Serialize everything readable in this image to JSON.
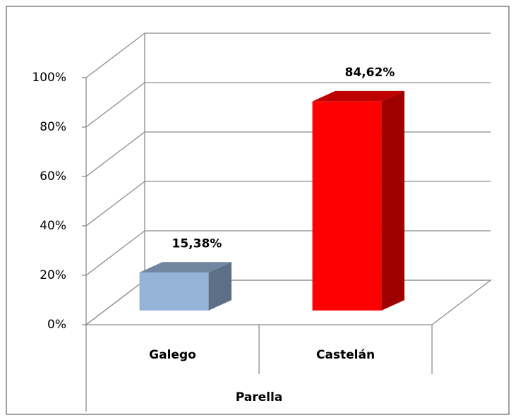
{
  "chart_data": {
    "type": "bar3d",
    "categories": [
      "Galego",
      "Castelán"
    ],
    "series": [
      {
        "values": [
          15.38,
          84.62
        ],
        "value_labels": [
          "15,38%",
          "84,62%"
        ],
        "colors": [
          "#95b3d7",
          "#ff0000"
        ]
      }
    ],
    "xlabel": "Parella",
    "ylim": [
      0,
      100
    ],
    "yticks": [
      {
        "value": 0,
        "label": "0%"
      },
      {
        "value": 20,
        "label": "20%"
      },
      {
        "value": 40,
        "label": "40%"
      },
      {
        "value": 60,
        "label": "60%"
      },
      {
        "value": 80,
        "label": "80%"
      },
      {
        "value": 100,
        "label": "100%"
      }
    ],
    "grid": true
  }
}
